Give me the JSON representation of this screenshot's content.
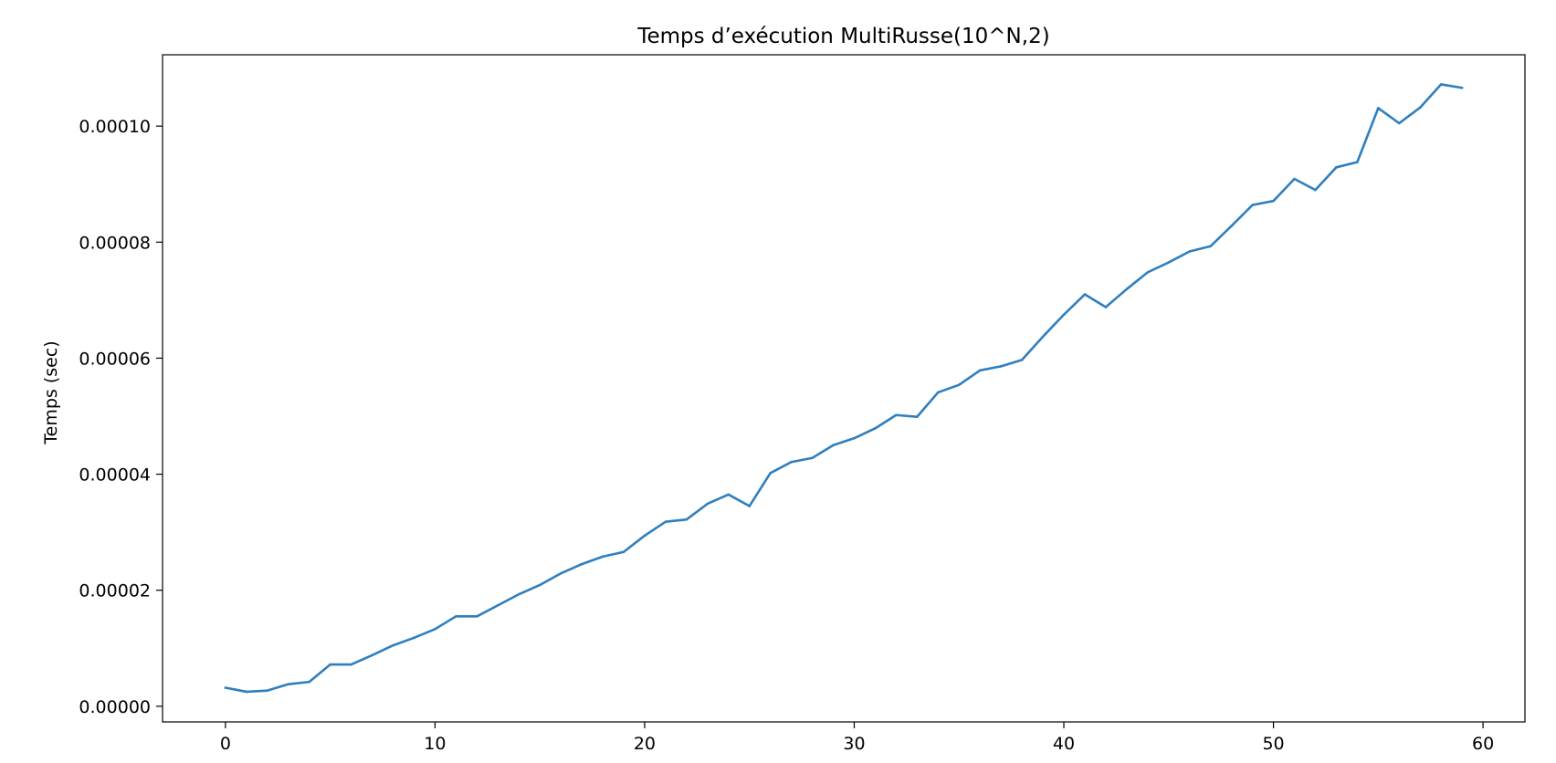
{
  "chart_data": {
    "type": "line",
    "title": "Temps d’exécution MultiRusse(10^N,2)",
    "xlabel": "",
    "ylabel": "Temps (sec)",
    "xlim": [
      -3,
      62
    ],
    "ylim": [
      -2.7e-06,
      0.0001123
    ],
    "xticks": [
      0,
      10,
      20,
      30,
      40,
      50,
      60
    ],
    "xtick_labels": [
      "0",
      "10",
      "20",
      "30",
      "40",
      "50",
      "60"
    ],
    "yticks": [
      0,
      2e-05,
      4e-05,
      6e-05,
      8e-05,
      0.0001
    ],
    "ytick_labels": [
      "0.00000",
      "0.00002",
      "0.00004",
      "0.00006",
      "0.00008",
      "0.00010"
    ],
    "grid": false,
    "color": "#2f7fbf",
    "x": [
      0,
      1,
      2,
      3,
      4,
      5,
      6,
      7,
      8,
      9,
      10,
      11,
      12,
      13,
      14,
      15,
      16,
      17,
      18,
      19,
      20,
      21,
      22,
      23,
      24,
      25,
      26,
      27,
      28,
      29,
      30,
      31,
      32,
      33,
      34,
      35,
      36,
      37,
      38,
      39,
      40,
      41,
      42,
      43,
      44,
      45,
      46,
      47,
      48,
      49,
      50,
      51,
      52,
      53,
      54,
      55,
      56,
      57,
      58,
      59
    ],
    "y": [
      3.2e-06,
      2.5e-06,
      2.7e-06,
      3.8e-06,
      4.2e-06,
      7.2e-06,
      7.2e-06,
      8.8e-06,
      1.05e-05,
      1.18e-05,
      1.33e-05,
      1.55e-05,
      1.55e-05,
      1.74e-05,
      1.93e-05,
      2.09e-05,
      2.29e-05,
      2.45e-05,
      2.58e-05,
      2.66e-05,
      2.94e-05,
      3.18e-05,
      3.22e-05,
      3.49e-05,
      3.65e-05,
      3.45e-05,
      4.02e-05,
      4.21e-05,
      4.28e-05,
      4.5e-05,
      4.62e-05,
      4.79e-05,
      5.02e-05,
      4.99e-05,
      5.41e-05,
      5.54e-05,
      5.79e-05,
      5.86e-05,
      5.97e-05,
      6.37e-05,
      6.75e-05,
      7.1e-05,
      6.88e-05,
      7.19e-05,
      7.48e-05,
      7.65e-05,
      7.84e-05,
      7.93e-05,
      8.28e-05,
      8.64e-05,
      8.71e-05,
      9.09e-05,
      8.9e-05,
      9.29e-05,
      9.38e-05,
      0.0001031,
      0.0001005,
      0.0001032,
      0.0001072,
      0.0001066
    ]
  }
}
